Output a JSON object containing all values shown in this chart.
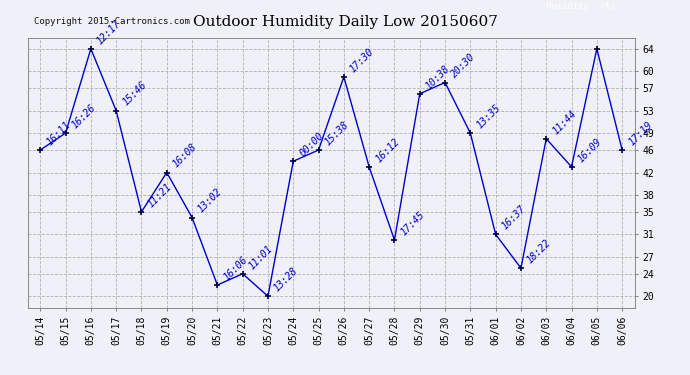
{
  "title": "Outdoor Humidity Daily Low 20150607",
  "copyright": "Copyright 2015-Cartronics.com",
  "legend_label": "Humidity  (%)",
  "dates": [
    "05/14",
    "05/15",
    "05/16",
    "05/17",
    "05/18",
    "05/19",
    "05/20",
    "05/21",
    "05/22",
    "05/23",
    "05/24",
    "05/25",
    "05/26",
    "05/27",
    "05/28",
    "05/29",
    "05/30",
    "05/31",
    "06/01",
    "06/02",
    "06/03",
    "06/04",
    "06/05",
    "06/06"
  ],
  "values": [
    46,
    49,
    64,
    53,
    35,
    42,
    34,
    22,
    24,
    20,
    44,
    46,
    59,
    43,
    30,
    56,
    58,
    49,
    31,
    25,
    48,
    43,
    64,
    46
  ],
  "labels": [
    "16:11",
    "16:26",
    "12:17",
    "15:46",
    "11:21",
    "16:08",
    "13:02",
    "16:06",
    "11:01",
    "13:28",
    "00:00",
    "15:38",
    "17:30",
    "16:12",
    "17:45",
    "10:38",
    "20:30",
    "13:35",
    "16:37",
    "18:22",
    "11:44",
    "16:09",
    "",
    "17:19"
  ],
  "ylim": [
    18,
    66
  ],
  "yticks": [
    20,
    24,
    27,
    31,
    35,
    38,
    42,
    46,
    49,
    53,
    57,
    60,
    64
  ],
  "line_color": "#0000CC",
  "bg_color": "#f0f0f8",
  "plot_bg": "#f0f0f8",
  "grid_color": "#aaaaaa",
  "title_fontsize": 11,
  "tick_fontsize": 7,
  "label_fontsize": 7,
  "copyright_fontsize": 6.5
}
